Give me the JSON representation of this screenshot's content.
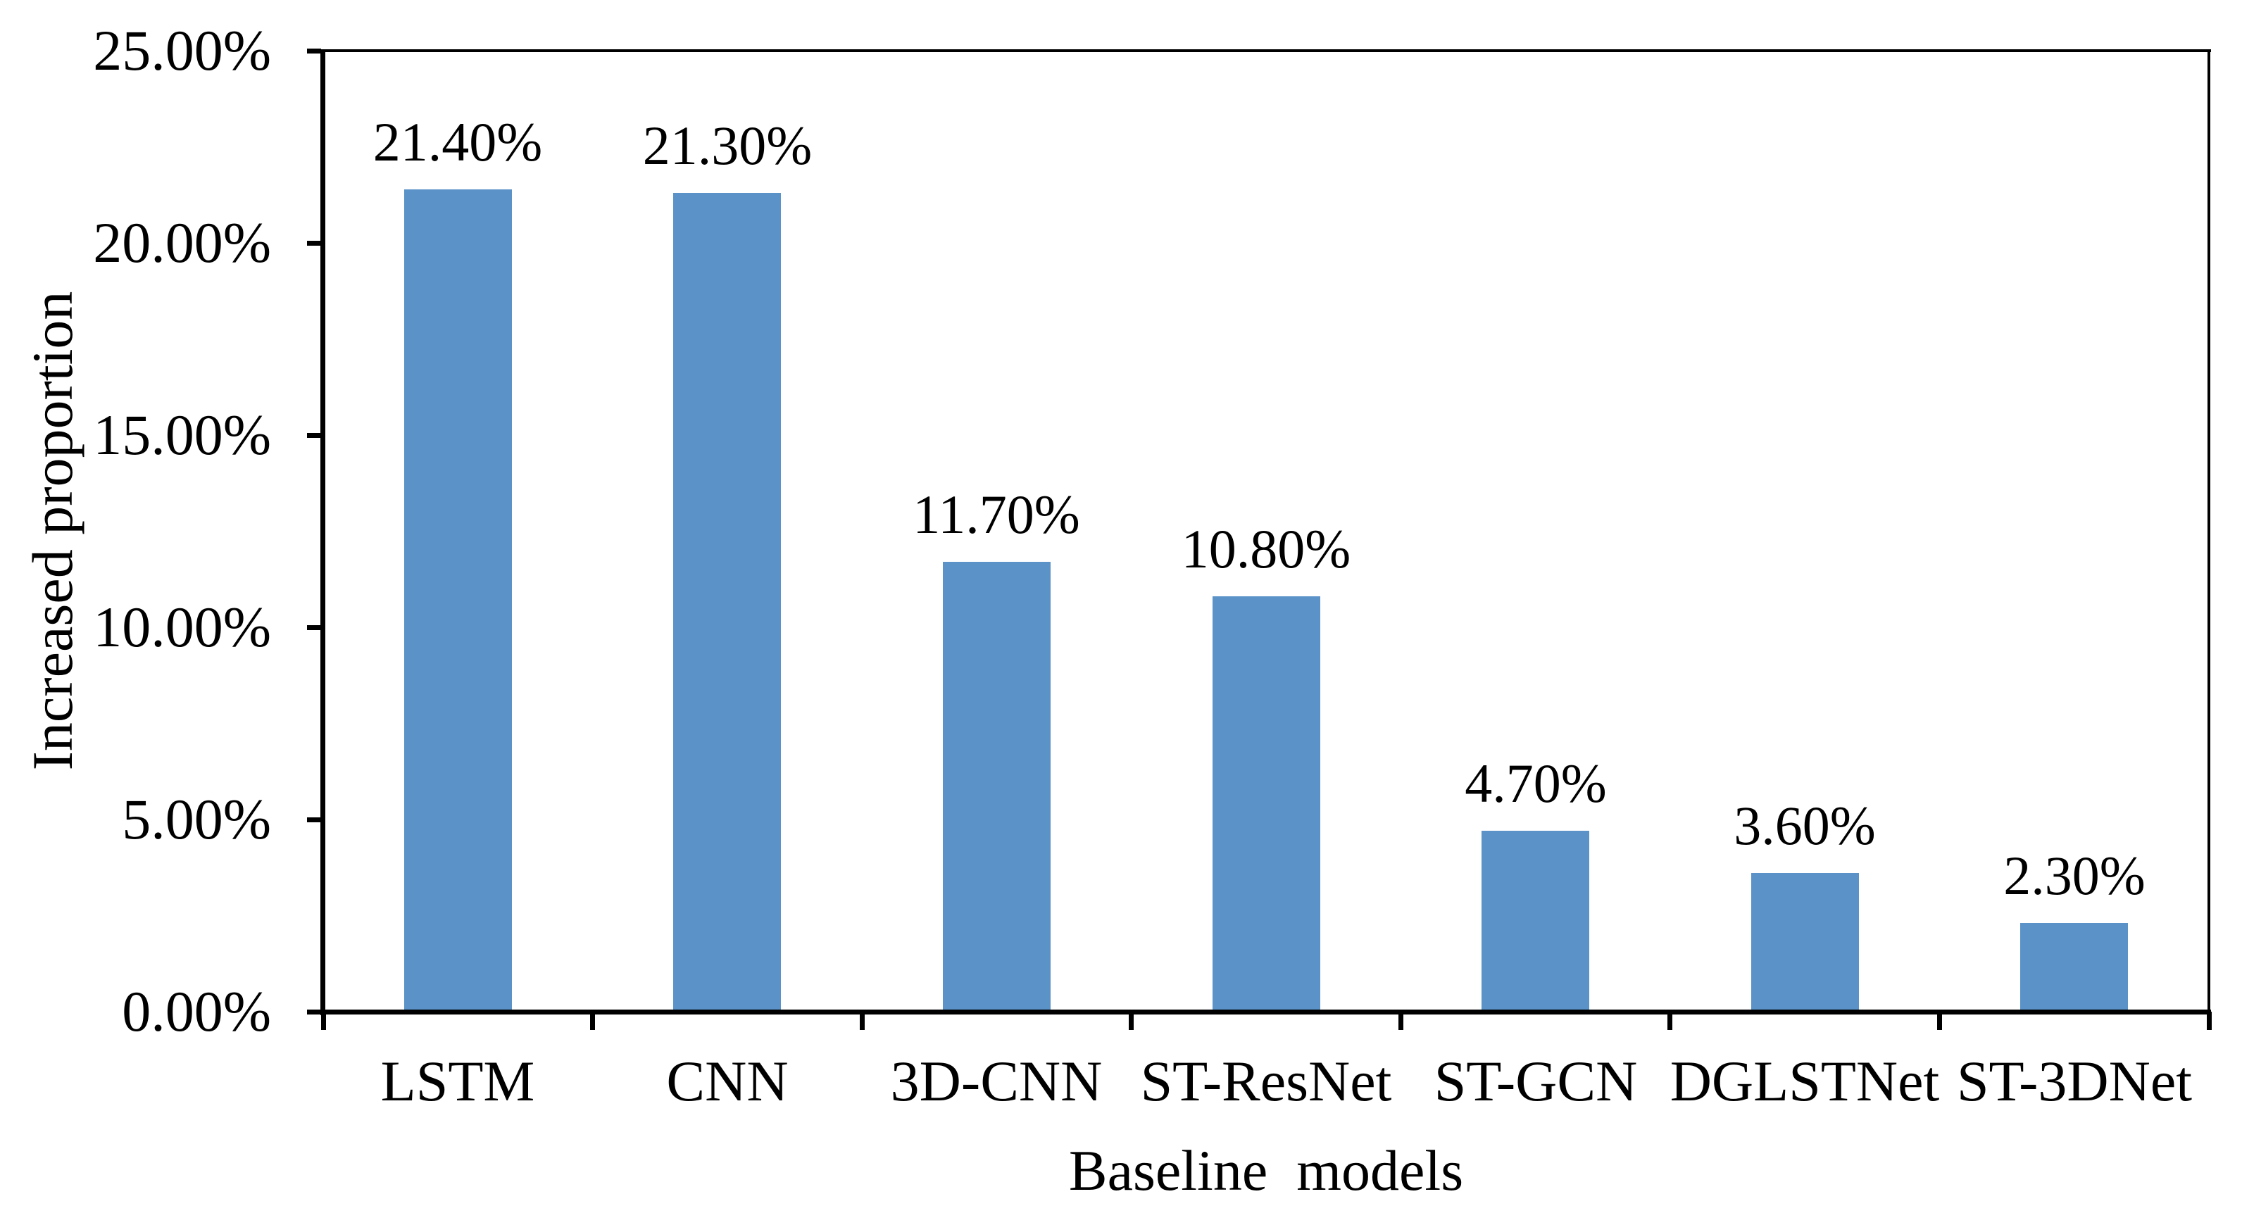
{
  "chart_data": {
    "type": "bar",
    "title": "",
    "categories": [
      "LSTM",
      "CNN",
      "3D-CNN",
      "ST-ResNet",
      "ST-GCN",
      "DGLSTNet",
      "ST-3DNet"
    ],
    "values": [
      21.4,
      21.3,
      11.7,
      10.8,
      4.7,
      3.6,
      2.3
    ],
    "data_labels": [
      "21.40%",
      "21.30%",
      "11.70%",
      "10.80%",
      "4.70%",
      "3.60%",
      "2.30%"
    ],
    "xlabel": "Baseline  models",
    "ylabel": "Increased proportion",
    "ylim": [
      0,
      25
    ],
    "ytick_step": 5,
    "ytick_labels": [
      "0.00%",
      "5.00%",
      "10.00%",
      "15.00%",
      "20.00%",
      "25.00%"
    ],
    "bar_color": "#5B93C8",
    "axis_color": "#000000",
    "grid": false,
    "legend_position": "none",
    "plot_frame": true
  }
}
